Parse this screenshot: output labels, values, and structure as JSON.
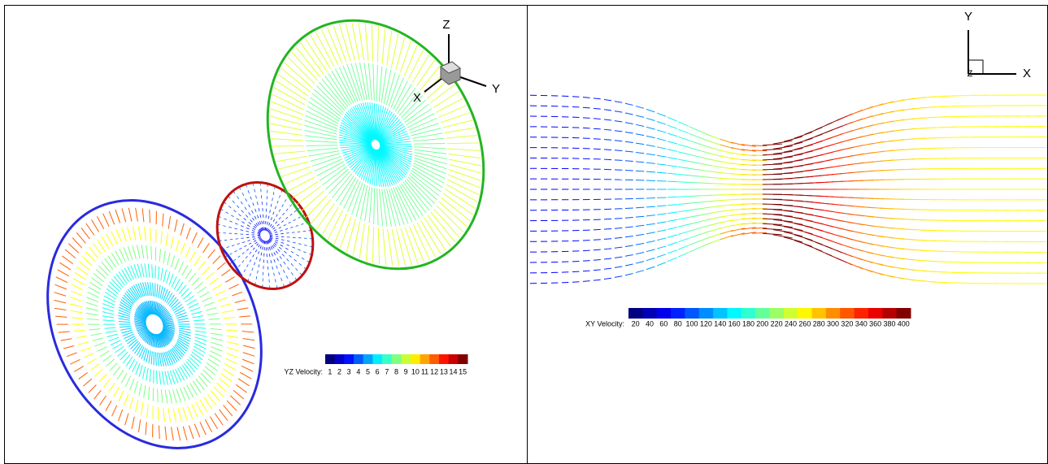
{
  "left_panel": {
    "axes": {
      "z": "Z",
      "y": "Y",
      "x": "X"
    },
    "legend": {
      "title": "YZ Velocity:",
      "labels": [
        1,
        2,
        3,
        4,
        5,
        6,
        7,
        8,
        9,
        10,
        11,
        12,
        13,
        14,
        15
      ]
    }
  },
  "right_panel": {
    "axes": {
      "y": "Y",
      "x": "X",
      "z": "Z"
    },
    "legend": {
      "title": "XY Velocity:",
      "labels": [
        20,
        40,
        60,
        80,
        100,
        120,
        140,
        160,
        180,
        200,
        220,
        240,
        260,
        280,
        300,
        320,
        340,
        360,
        380,
        400
      ]
    }
  }
}
